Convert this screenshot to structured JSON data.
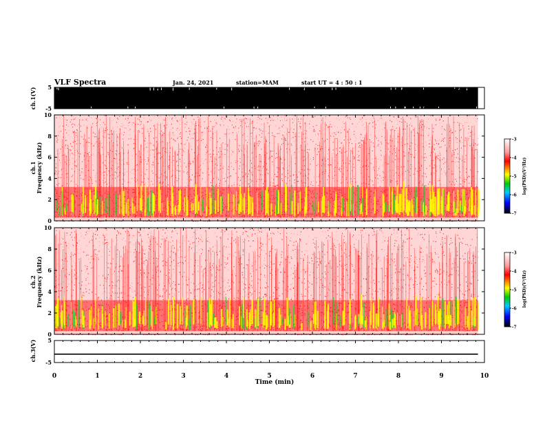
{
  "header": {
    "title": "VLF Spectra",
    "date": "Jan. 24, 2021",
    "station": "station=MAM",
    "start": "start UT =  4 : 50 : 1"
  },
  "colors": {
    "background": "#ffffff",
    "axes": "#000000",
    "waveform": "#000000",
    "colormap": [
      "#ffffff",
      "#ff9a9a",
      "#ff0000",
      "#ffff00",
      "#00cc00",
      "#00ccff",
      "#0000ff",
      "#000000"
    ]
  },
  "chart_data": [
    {
      "type": "line",
      "name": "ch1-waveform",
      "ylabel": "ch.1(V)",
      "ylim": [
        -5,
        5
      ],
      "yticks": [
        "5",
        "-5"
      ],
      "xlim": [
        0,
        10
      ],
      "description_values": {
        "envelope_upper": 5,
        "envelope_lower": -5
      }
    },
    {
      "type": "heatmap",
      "name": "ch1-spectrogram",
      "panel_label": "ch.1",
      "ylabel": "Frequency (kHz)",
      "ylim": [
        0,
        10
      ],
      "yticks": [
        "0",
        "2",
        "4",
        "6",
        "8",
        "10"
      ],
      "xlim": [
        0,
        10
      ],
      "colorbar": {
        "label": "log(PSD)(V²/Hz)",
        "range": [
          -7,
          -3
        ],
        "ticks": [
          "-3",
          "-4",
          "-5",
          "-6",
          "-7"
        ]
      },
      "data_end_min": 9.85
    },
    {
      "type": "heatmap",
      "name": "ch2-spectrogram",
      "panel_label": "ch.2",
      "ylabel": "Frequency (kHz)",
      "ylim": [
        0,
        10
      ],
      "yticks": [
        "0",
        "2",
        "4",
        "6",
        "8",
        "10"
      ],
      "xlim": [
        0,
        10
      ],
      "colorbar": {
        "label": "log(PSD)(V²/Hz)",
        "range": [
          -7,
          -3
        ],
        "ticks": [
          "-3",
          "-4",
          "-5",
          "-6",
          "-7"
        ]
      },
      "data_end_min": 9.85
    },
    {
      "type": "line",
      "name": "ch3-waveform",
      "ylabel": "ch.3(V)",
      "ylim": [
        -5,
        5
      ],
      "yticks": [
        "5",
        "-5"
      ],
      "xlim": [
        0,
        10
      ],
      "x": [
        0,
        9.85
      ],
      "y": [
        -1.2,
        -1.2
      ]
    }
  ],
  "xaxis": {
    "label": "Time (min)",
    "ticks": [
      "0",
      "1",
      "2",
      "3",
      "4",
      "5",
      "6",
      "7",
      "8",
      "9",
      "10"
    ],
    "range": [
      0,
      10
    ]
  }
}
